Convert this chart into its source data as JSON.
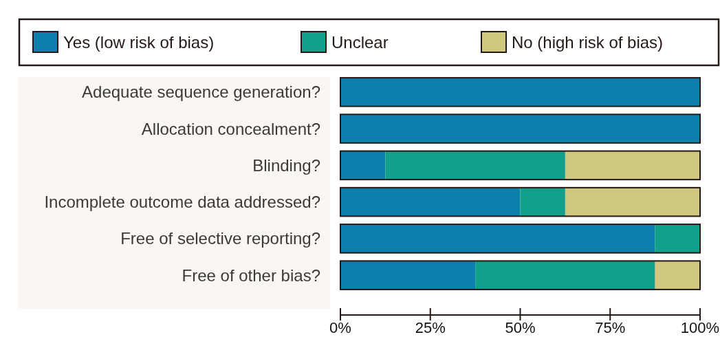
{
  "chart_data": {
    "type": "bar",
    "orientation": "horizontal",
    "stacked": true,
    "categories": [
      "Adequate sequence generation?",
      "Allocation concealment?",
      "Blinding?",
      "Incomplete outcome data addressed?",
      "Free of selective reporting?",
      "Free of other bias?"
    ],
    "series": [
      {
        "name": "Yes (low risk of bias)",
        "color": "#0e7fad",
        "values": [
          100,
          100,
          12.5,
          50,
          87.5,
          37.5
        ]
      },
      {
        "name": "Unclear",
        "color": "#13a08a",
        "values": [
          0,
          0,
          50,
          12.5,
          12.5,
          50
        ]
      },
      {
        "name": "No (high risk of bias)",
        "color": "#cfc77e",
        "values": [
          0,
          0,
          37.5,
          37.5,
          0,
          12.5
        ]
      }
    ],
    "xlim": [
      0,
      100
    ],
    "xticks": [
      {
        "value": 0,
        "label": "0%"
      },
      {
        "value": 25,
        "label": "25%"
      },
      {
        "value": 50,
        "label": "50%"
      },
      {
        "value": 75,
        "label": "75%"
      },
      {
        "value": 100,
        "label": "100%"
      }
    ],
    "legend": "top",
    "grid": false
  }
}
